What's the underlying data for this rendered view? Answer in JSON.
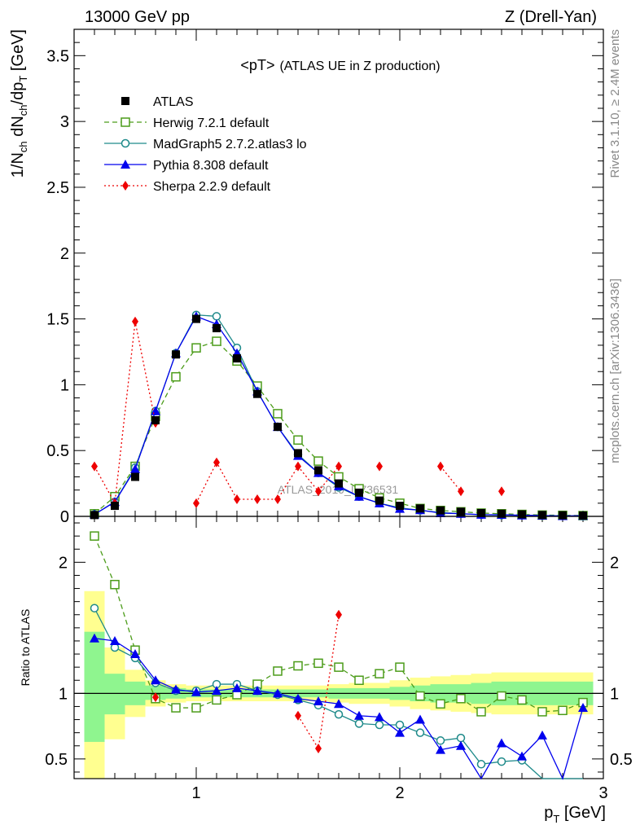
{
  "header": {
    "left": "13000 GeV pp",
    "right": "Z (Drell-Yan)"
  },
  "side_labels": {
    "rivet": "Rivet 3.1.10, ≥ 2.4M events",
    "mcplots": "mcplots.cern.ch [arXiv:1306.3436]"
  },
  "chart_data": {
    "type": "line",
    "title_main": "<pT>",
    "title_sub": "(ATLAS UE in Z production)",
    "watermark": "ATLAS_2019_I1736531",
    "ylabel": "1/N_ch dN_ch/dp_T [GeV]",
    "ratio_ylabel": "Ratio to ATLAS",
    "xlabel": "p_T [GeV]",
    "xlim": [
      0.4,
      3.0
    ],
    "ylim": [
      0,
      3.7
    ],
    "ratio_ylim": [
      0.35,
      2.35
    ],
    "x_ticks": [
      "1",
      "2",
      "3"
    ],
    "y_ticks": [
      "0",
      "0.5",
      "1",
      "1.5",
      "2",
      "2.5",
      "3",
      "3.5"
    ],
    "ratio_y_ticks": [
      "0.5",
      "1",
      "2"
    ],
    "grid": false,
    "legend_position": "top-left",
    "colors": {
      "atlas": "#000000",
      "herwig": "#4c9c1a",
      "madgraph": "#1e8a8a",
      "pythia": "#0000ee",
      "sherpa": "#ee0000",
      "band_inner": "#8ff58f",
      "band_outer": "#ffff90"
    },
    "x": [
      0.5,
      0.6,
      0.7,
      0.8,
      0.9,
      1.0,
      1.1,
      1.2,
      1.3,
      1.4,
      1.5,
      1.6,
      1.7,
      1.8,
      1.9,
      2.0,
      2.1,
      2.2,
      2.3,
      2.4,
      2.5,
      2.6,
      2.7,
      2.8,
      2.9
    ],
    "atlas": {
      "name": "ATLAS",
      "values": [
        0.01,
        0.08,
        0.3,
        0.73,
        1.23,
        1.5,
        1.43,
        1.2,
        0.93,
        0.68,
        0.48,
        0.35,
        0.25,
        0.18,
        0.12,
        0.08,
        0.06,
        0.045,
        0.035,
        0.025,
        0.02,
        0.015,
        0.01,
        0.008,
        0.006
      ]
    },
    "series": [
      {
        "name": "Herwig 7.2.1 default",
        "values": [
          0.02,
          0.15,
          0.38,
          0.76,
          1.06,
          1.28,
          1.33,
          1.18,
          0.99,
          0.78,
          0.58,
          0.42,
          0.3,
          0.21,
          0.14,
          0.1,
          0.06,
          0.045,
          0.035,
          0.025,
          0.02,
          0.015,
          0.01,
          0.008,
          0.006
        ],
        "ratio": [
          2.2,
          1.83,
          1.33,
          0.96,
          0.89,
          0.89,
          0.95,
          0.99,
          1.07,
          1.17,
          1.21,
          1.23,
          1.2,
          1.1,
          1.15,
          1.2,
          0.98,
          0.92,
          0.96,
          0.86,
          0.98,
          0.95,
          0.86,
          0.87,
          0.93
        ]
      },
      {
        "name": "MadGraph5 2.7.2.atlas3 lo",
        "values": [
          0.015,
          0.11,
          0.37,
          0.8,
          1.24,
          1.53,
          1.52,
          1.28,
          0.95,
          0.68,
          0.47,
          0.33,
          0.22,
          0.15,
          0.1,
          0.065,
          0.045,
          0.03,
          0.02,
          0.012,
          0.01,
          0.008,
          0.005,
          0.004,
          0.003
        ],
        "ratio": [
          1.65,
          1.35,
          1.27,
          1.08,
          1.02,
          1.02,
          1.07,
          1.07,
          1.02,
          0.99,
          0.95,
          0.91,
          0.84,
          0.77,
          0.76,
          0.76,
          0.7,
          0.64,
          0.66,
          0.46,
          0.48,
          0.49,
          0.3,
          0.3,
          0.3
        ]
      },
      {
        "name": "Pythia 8.308 default",
        "values": [
          0.015,
          0.11,
          0.36,
          0.8,
          1.24,
          1.52,
          1.46,
          1.24,
          0.95,
          0.68,
          0.46,
          0.33,
          0.23,
          0.15,
          0.1,
          0.058,
          0.048,
          0.025,
          0.02,
          0.013,
          0.012,
          0.008,
          0.006,
          0.003,
          0.005
        ],
        "ratio": [
          1.42,
          1.4,
          1.3,
          1.1,
          1.03,
          1.01,
          1.02,
          1.04,
          1.02,
          1.0,
          0.96,
          0.94,
          0.92,
          0.83,
          0.82,
          0.7,
          0.8,
          0.57,
          0.6,
          0.3,
          0.62,
          0.52,
          0.68,
          0.3,
          0.89
        ]
      },
      {
        "name": "Sherpa 2.2.9 default",
        "values": [
          0.38,
          0.1,
          1.48,
          0.71,
          null,
          0.1,
          0.41,
          0.13,
          0.13,
          0.13,
          0.38,
          0.19,
          0.38,
          null,
          0.38,
          null,
          null,
          0.38,
          0.19,
          null,
          0.19,
          null,
          null,
          null,
          null
        ],
        "ratio": [
          null,
          null,
          null,
          0.97,
          null,
          null,
          null,
          null,
          null,
          null,
          0.83,
          0.58,
          1.6,
          null,
          null,
          null,
          null,
          null,
          null,
          null,
          null,
          null,
          null,
          null,
          null
        ]
      }
    ],
    "band_inner": [
      0.63,
      0.84,
      0.91,
      0.95,
      0.96,
      0.97,
      0.97,
      0.97,
      0.97,
      0.97,
      0.97,
      0.97,
      0.96,
      0.96,
      0.96,
      0.95,
      0.94,
      0.93,
      0.93,
      0.92,
      0.91,
      0.91,
      0.91,
      0.91,
      0.91
    ],
    "band_inner_hi": [
      1.47,
      1.15,
      1.09,
      1.06,
      1.04,
      1.03,
      1.03,
      1.03,
      1.03,
      1.03,
      1.03,
      1.03,
      1.04,
      1.04,
      1.04,
      1.05,
      1.06,
      1.07,
      1.07,
      1.08,
      1.09,
      1.09,
      1.09,
      1.09,
      1.09
    ],
    "band_outer": [
      0.3,
      0.65,
      0.82,
      0.9,
      0.93,
      0.94,
      0.94,
      0.94,
      0.94,
      0.94,
      0.94,
      0.94,
      0.93,
      0.92,
      0.92,
      0.9,
      0.88,
      0.87,
      0.86,
      0.85,
      0.84,
      0.84,
      0.84,
      0.84,
      0.84
    ],
    "band_outer_hi": [
      1.78,
      1.35,
      1.18,
      1.1,
      1.07,
      1.06,
      1.06,
      1.06,
      1.06,
      1.06,
      1.06,
      1.06,
      1.07,
      1.08,
      1.08,
      1.1,
      1.12,
      1.13,
      1.14,
      1.15,
      1.16,
      1.16,
      1.16,
      1.16,
      1.16
    ]
  }
}
